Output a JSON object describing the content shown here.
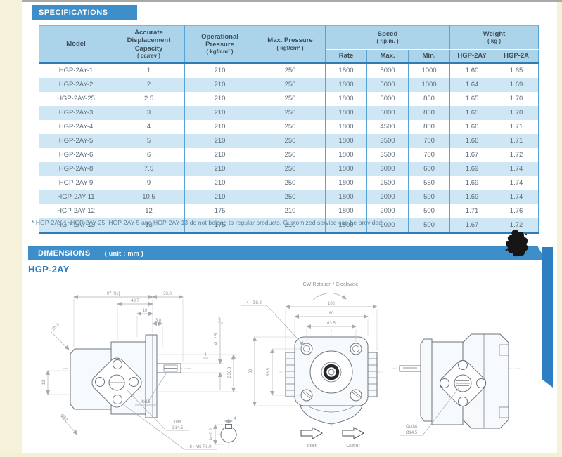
{
  "colors": {
    "bar_blue": "#3e8fc9",
    "header_bg": "#abd4ea",
    "row_alt": "#cfe7f5",
    "grid_blue": "#58a3d6",
    "border_blue": "#2d7cb5",
    "stripe_blue": "#2e7fc2",
    "page_edge_cream": "#f6f2da"
  },
  "spec": {
    "title": "SPECIFICATIONS"
  },
  "table": {
    "group_headers": {
      "model": "Model",
      "capacity": "Accurate Displacement Capacity",
      "capacity_unit": "( cc/rev )",
      "op_pressure": "Operational Pressure",
      "op_pressure_unit": "( kgf/cm² )",
      "max_pressure": "Max. Pressure",
      "max_pressure_unit": "( kgf/cm² )",
      "speed": "Speed",
      "speed_unit": "( r.p.m. )",
      "weight": "Weight",
      "weight_unit": "( kg )"
    },
    "sub_headers": {
      "rate": "Rate",
      "max": "Max.",
      "min": "Min.",
      "hgp_2ay": "HGP-2AY",
      "hgp_2a": "HGP-2A"
    },
    "rows": [
      [
        "HGP-2AY-1",
        "1",
        "210",
        "250",
        "1800",
        "5000",
        "1000",
        "1.60",
        "1.65"
      ],
      [
        "HGP-2AY-2",
        "2",
        "210",
        "250",
        "1800",
        "5000",
        "1000",
        "1.64",
        "1.69"
      ],
      [
        "HGP-2AY-25",
        "2.5",
        "210",
        "250",
        "1800",
        "5000",
        "850",
        "1.65",
        "1.70"
      ],
      [
        "HGP-2AY-3",
        "3",
        "210",
        "250",
        "1800",
        "5000",
        "850",
        "1.65",
        "1.70"
      ],
      [
        "HGP-2AY-4",
        "4",
        "210",
        "250",
        "1800",
        "4500",
        "800",
        "1.66",
        "1.71"
      ],
      [
        "HGP-2AY-5",
        "5",
        "210",
        "250",
        "1800",
        "3500",
        "700",
        "1.66",
        "1.71"
      ],
      [
        "HGP-2AY-6",
        "6",
        "210",
        "250",
        "1800",
        "3500",
        "700",
        "1.67",
        "1.72"
      ],
      [
        "HGP-2AY-8",
        "7.5",
        "210",
        "250",
        "1800",
        "3000",
        "600",
        "1.69",
        "1.74"
      ],
      [
        "HGP-2AY-9",
        "9",
        "210",
        "250",
        "1800",
        "2500",
        "550",
        "1.69",
        "1.74"
      ],
      [
        "HGP-2AY-11",
        "10.5",
        "210",
        "250",
        "1800",
        "2000",
        "500",
        "1.69",
        "1.74"
      ],
      [
        "HGP-2AY-12",
        "12",
        "175",
        "210",
        "1800",
        "2000",
        "500",
        "1.71",
        "1.76"
      ],
      [
        "HGP-2AY-13",
        "13",
        "175",
        "210",
        "1800",
        "2000",
        "500",
        "1.67",
        "1.72"
      ]
    ],
    "footnote": "* HGP-2AY-1, HGP-2AY-25, HGP-2AY-5 and HGP-2AY-13 do not belong to regular products. Customized service can be provided."
  },
  "dimensions": {
    "title": "DIMENSIONS",
    "unit": "( unit : mm )",
    "model": "HGP-2AY",
    "rotation_note": "CW Rotation / Clockwise",
    "side_view": {
      "dim_overall": "97 [91]",
      "dim_shaft_len": "33.8",
      "dim_437": "43.7",
      "dim_10": "10",
      "dim_38": "3.8",
      "dim_253": "25.3",
      "dim_13": "13",
      "key_label": "4x16",
      "chamfer_label": "Ø52",
      "shaft_dia": "Ø12.5",
      "pilot_dia": "Ø50.8",
      "key_width": "4",
      "tol_plus": "+0.01",
      "tol_zero": "0",
      "inlet_word": "Inlet",
      "inlet_dia": "Ø14.5",
      "thread_label": "8 - M6 P1.0"
    },
    "key_detail": {
      "width": "4",
      "height": "14±0.2"
    },
    "front_view": {
      "dim_102": "102",
      "dim_80": "80",
      "dim_635": "63.5",
      "vdim_80": "80",
      "vdim_635": "63.5",
      "holes_label": "4 - Ø8.8",
      "inlet_word": "Inlet",
      "outlet_word": "Outlet"
    },
    "rear_view": {
      "outlet_word": "Outlet",
      "outlet_dia": "Ø14.5"
    }
  }
}
